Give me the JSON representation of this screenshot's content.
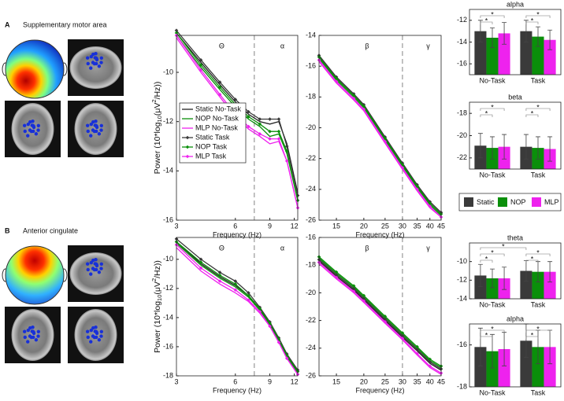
{
  "panels": [
    {
      "label": "A",
      "title": "Supplementary motor area"
    },
    {
      "label": "B",
      "title": "Anterior cingulate"
    }
  ],
  "chart_data": [
    {
      "type": "line",
      "x_label": "Frequency (Hz)",
      "y_label": {
        "prefix": "Power (10*log",
        "sub": "10",
        "mid": "(μV",
        "sup": "2",
        "suffix": "/Hz))"
      },
      "x": [
        3,
        4,
        5,
        6,
        7,
        8,
        9,
        10,
        11,
        12.5
      ],
      "xlim": [
        3,
        12.5
      ],
      "xticks": [
        3,
        6,
        9,
        12
      ],
      "log_x": true,
      "ylim": [
        -16,
        -8.5
      ],
      "yticks": [
        -10,
        -12,
        -14,
        -16
      ],
      "band_edges": [
        7.5
      ],
      "band_labels": [
        "Θ",
        "α"
      ],
      "legend": true,
      "series": [
        {
          "name": "Static No-Task",
          "color": "#222222",
          "markers": false,
          "values": [
            -8.4,
            -9.6,
            -10.5,
            -11.2,
            -11.7,
            -12.0,
            -12.1,
            -12.0,
            -12.9,
            -14.9
          ]
        },
        {
          "name": "NOP No-Task",
          "color": "#0a8f0a",
          "markers": false,
          "values": [
            -8.5,
            -9.8,
            -10.7,
            -11.4,
            -11.9,
            -12.2,
            -12.6,
            -12.5,
            -13.3,
            -15.2
          ]
        },
        {
          "name": "MLP No-Task",
          "color": "#ee22ee",
          "markers": false,
          "values": [
            -8.6,
            -10.0,
            -11.0,
            -11.8,
            -12.3,
            -12.6,
            -12.9,
            -12.8,
            -13.6,
            -15.5
          ]
        },
        {
          "name": "Static Task",
          "color": "#3a3a3a",
          "markers": true,
          "values": [
            -8.3,
            -9.5,
            -10.4,
            -11.1,
            -11.6,
            -11.9,
            -11.9,
            -11.9,
            -13.0,
            -15.0
          ]
        },
        {
          "name": "NOP Task",
          "color": "#0a8f0a",
          "markers": true,
          "values": [
            -8.4,
            -9.7,
            -10.6,
            -11.3,
            -11.8,
            -12.1,
            -12.4,
            -12.4,
            -13.2,
            -15.2
          ]
        },
        {
          "name": "MLP Task",
          "color": "#ee22ee",
          "markers": true,
          "values": [
            -8.5,
            -9.9,
            -10.9,
            -11.7,
            -12.2,
            -12.5,
            -12.7,
            -12.7,
            -13.6,
            -15.5
          ]
        }
      ]
    },
    {
      "type": "line",
      "x_label": "Frequency (Hz)",
      "x": [
        12.5,
        15,
        18,
        20,
        25,
        30,
        35,
        40,
        45
      ],
      "xlim": [
        12.5,
        45
      ],
      "xticks": [
        15,
        20,
        25,
        30,
        35,
        40,
        45
      ],
      "log_x": true,
      "ylim": [
        -26,
        -14
      ],
      "yticks": [
        -14,
        -16,
        -18,
        -20,
        -22,
        -24,
        -26
      ],
      "band_edges": [
        30
      ],
      "band_labels": [
        "β",
        "γ"
      ],
      "legend": false,
      "series": [
        {
          "name": "Static No-Task",
          "color": "#222222",
          "markers": false,
          "values": [
            -15.4,
            -16.8,
            -17.9,
            -18.6,
            -20.7,
            -22.4,
            -23.8,
            -24.9,
            -25.6
          ]
        },
        {
          "name": "NOP No-Task",
          "color": "#0a8f0a",
          "markers": false,
          "values": [
            -15.5,
            -16.9,
            -18.0,
            -18.7,
            -20.8,
            -22.5,
            -23.9,
            -25.0,
            -25.7
          ]
        },
        {
          "name": "MLP No-Task",
          "color": "#ee22ee",
          "markers": false,
          "values": [
            -15.7,
            -17.1,
            -18.2,
            -18.9,
            -21.0,
            -22.7,
            -24.1,
            -25.2,
            -25.8
          ]
        },
        {
          "name": "Static Task",
          "color": "#3a3a3a",
          "markers": true,
          "values": [
            -15.3,
            -16.7,
            -17.8,
            -18.5,
            -20.6,
            -22.3,
            -23.7,
            -24.8,
            -25.5
          ]
        },
        {
          "name": "NOP Task",
          "color": "#0a8f0a",
          "markers": true,
          "values": [
            -15.4,
            -16.8,
            -17.9,
            -18.6,
            -20.7,
            -22.4,
            -23.8,
            -24.9,
            -25.6
          ]
        },
        {
          "name": "MLP Task",
          "color": "#ee22ee",
          "markers": true,
          "values": [
            -15.6,
            -17.0,
            -18.1,
            -18.8,
            -20.9,
            -22.6,
            -24.0,
            -25.1,
            -25.8
          ]
        }
      ]
    },
    {
      "type": "grouped_bar",
      "title": "alpha",
      "categories": [
        "No-Task",
        "Task"
      ],
      "ylim": [
        -17,
        -11
      ],
      "yticks": [
        -12,
        -14,
        -16
      ],
      "legend": false,
      "series": [
        {
          "name": "Static",
          "color": "#3a3a3a",
          "values": [
            -13.0,
            -13.0
          ],
          "errors": [
            1.0,
            1.0
          ]
        },
        {
          "name": "NOP",
          "color": "#0a8f0a",
          "values": [
            -13.6,
            -13.5
          ],
          "errors": [
            0.9,
            0.9
          ]
        },
        {
          "name": "MLP",
          "color": "#ee22ee",
          "values": [
            -13.2,
            -13.8
          ],
          "errors": [
            1.0,
            0.9
          ]
        }
      ],
      "significance": [
        {
          "a": [
            "No-Task",
            "Static"
          ],
          "b": [
            "No-Task",
            "NOP"
          ],
          "label": "*"
        },
        {
          "a": [
            "No-Task",
            "Static"
          ],
          "b": [
            "No-Task",
            "MLP"
          ],
          "label": "*"
        },
        {
          "a": [
            "Task",
            "Static"
          ],
          "b": [
            "Task",
            "NOP"
          ],
          "label": "*"
        },
        {
          "a": [
            "Task",
            "Static"
          ],
          "b": [
            "Task",
            "MLP"
          ],
          "label": "*"
        }
      ]
    },
    {
      "type": "grouped_bar",
      "title": "beta",
      "categories": [
        "No-Task",
        "Task"
      ],
      "ylim": [
        -23,
        -17
      ],
      "yticks": [
        -18,
        -20,
        -22
      ],
      "legend": true,
      "series": [
        {
          "name": "Static",
          "color": "#3a3a3a",
          "values": [
            -20.9,
            -21.0
          ],
          "errors": [
            1.1,
            1.1
          ]
        },
        {
          "name": "NOP",
          "color": "#0a8f0a",
          "values": [
            -21.1,
            -21.1
          ],
          "errors": [
            1.0,
            1.0
          ]
        },
        {
          "name": "MLP",
          "color": "#ee22ee",
          "values": [
            -21.0,
            -21.2
          ],
          "errors": [
            1.1,
            1.1
          ]
        }
      ],
      "significance": [
        {
          "a": [
            "No-Task",
            "Static"
          ],
          "b": [
            "No-Task",
            "NOP"
          ],
          "label": "*"
        },
        {
          "a": [
            "No-Task",
            "Static"
          ],
          "b": [
            "No-Task",
            "MLP"
          ],
          "label": "*"
        },
        {
          "a": [
            "Task",
            "Static"
          ],
          "b": [
            "Task",
            "NOP"
          ],
          "label": "*"
        },
        {
          "a": [
            "Task",
            "Static"
          ],
          "b": [
            "Task",
            "MLP"
          ],
          "label": "*"
        }
      ]
    },
    {
      "type": "line",
      "x_label": "Frequency (Hz)",
      "y_label": {
        "prefix": "Power (10*log",
        "sub": "10",
        "mid": "(μV",
        "sup": "2",
        "suffix": "/Hz))"
      },
      "x": [
        3,
        4,
        5,
        6,
        7,
        8,
        9,
        10,
        11,
        12.5
      ],
      "xlim": [
        3,
        12.5
      ],
      "xticks": [
        3,
        6,
        9,
        12
      ],
      "log_x": true,
      "ylim": [
        -18,
        -8.5
      ],
      "yticks": [
        -10,
        -12,
        -14,
        -16,
        -18
      ],
      "band_edges": [
        7.5
      ],
      "band_labels": [
        "Θ",
        "α"
      ],
      "legend": false,
      "series": [
        {
          "name": "Static No-Task",
          "color": "#222222",
          "markers": false,
          "values": [
            -8.8,
            -10.3,
            -11.2,
            -11.8,
            -12.5,
            -13.4,
            -14.4,
            -15.5,
            -16.6,
            -17.7
          ]
        },
        {
          "name": "NOP No-Task",
          "color": "#0a8f0a",
          "markers": false,
          "values": [
            -8.9,
            -10.4,
            -11.3,
            -11.9,
            -12.6,
            -13.5,
            -14.5,
            -15.6,
            -16.7,
            -17.8
          ]
        },
        {
          "name": "MLP No-Task",
          "color": "#ee22ee",
          "markers": false,
          "values": [
            -9.2,
            -10.8,
            -11.7,
            -12.3,
            -12.9,
            -13.7,
            -14.6,
            -15.7,
            -16.8,
            -17.9
          ]
        },
        {
          "name": "Static Task",
          "color": "#3a3a3a",
          "markers": true,
          "values": [
            -8.6,
            -10.0,
            -10.9,
            -11.5,
            -12.3,
            -13.3,
            -14.3,
            -15.4,
            -16.5,
            -17.6
          ]
        },
        {
          "name": "NOP Task",
          "color": "#0a8f0a",
          "markers": true,
          "values": [
            -8.8,
            -10.2,
            -11.1,
            -11.7,
            -12.5,
            -13.4,
            -14.4,
            -15.5,
            -16.6,
            -17.7
          ]
        },
        {
          "name": "MLP Task",
          "color": "#ee22ee",
          "markers": true,
          "values": [
            -9.0,
            -10.6,
            -11.5,
            -12.1,
            -12.8,
            -13.6,
            -14.6,
            -15.7,
            -16.8,
            -17.9
          ]
        }
      ]
    },
    {
      "type": "line",
      "x_label": "Frequency (Hz)",
      "x": [
        12.5,
        15,
        18,
        20,
        25,
        30,
        35,
        40,
        45
      ],
      "xlim": [
        12.5,
        45
      ],
      "xticks": [
        15,
        20,
        25,
        30,
        35,
        40,
        45
      ],
      "log_x": true,
      "ylim": [
        -26,
        -16
      ],
      "yticks": [
        -16,
        -18,
        -20,
        -22,
        -24,
        -26
      ],
      "band_edges": [
        30
      ],
      "band_labels": [
        "β",
        "γ"
      ],
      "legend": false,
      "series": [
        {
          "name": "Static No-Task",
          "color": "#222222",
          "markers": false,
          "values": [
            -17.7,
            -18.8,
            -19.8,
            -20.5,
            -22.0,
            -23.2,
            -24.2,
            -25.1,
            -25.6
          ]
        },
        {
          "name": "NOP No-Task",
          "color": "#0a8f0a",
          "markers": false,
          "values": [
            -17.5,
            -18.6,
            -19.6,
            -20.3,
            -21.8,
            -23.0,
            -24.0,
            -24.9,
            -25.4
          ]
        },
        {
          "name": "MLP No-Task",
          "color": "#ee22ee",
          "markers": false,
          "values": [
            -17.9,
            -19.0,
            -20.0,
            -20.7,
            -22.2,
            -23.4,
            -24.5,
            -25.4,
            -25.9
          ]
        },
        {
          "name": "Static Task",
          "color": "#3a3a3a",
          "markers": true,
          "values": [
            -17.6,
            -18.7,
            -19.7,
            -20.4,
            -21.9,
            -23.1,
            -24.1,
            -25.0,
            -25.5
          ]
        },
        {
          "name": "NOP Task",
          "color": "#0a8f0a",
          "markers": true,
          "values": [
            -17.4,
            -18.5,
            -19.5,
            -20.2,
            -21.7,
            -22.9,
            -23.9,
            -24.8,
            -25.3
          ]
        },
        {
          "name": "MLP Task",
          "color": "#ee22ee",
          "markers": true,
          "values": [
            -17.8,
            -18.9,
            -19.9,
            -20.6,
            -22.1,
            -23.3,
            -24.4,
            -25.3,
            -25.8
          ]
        }
      ]
    },
    {
      "type": "grouped_bar",
      "title": "theta",
      "categories": [
        "No-Task",
        "Task"
      ],
      "ylim": [
        -14,
        -8
      ],
      "yticks": [
        -10,
        -12,
        -14
      ],
      "legend": false,
      "series": [
        {
          "name": "Static",
          "color": "#3a3a3a",
          "values": [
            -11.5,
            -11.0
          ],
          "errors": [
            1.2,
            1.1
          ]
        },
        {
          "name": "NOP",
          "color": "#0a8f0a",
          "values": [
            -11.8,
            -11.1
          ],
          "errors": [
            1.0,
            1.1
          ]
        },
        {
          "name": "MLP",
          "color": "#ee22ee",
          "values": [
            -11.8,
            -11.1
          ],
          "errors": [
            1.2,
            1.1
          ]
        }
      ],
      "significance": [
        {
          "a": [
            "No-Task",
            "Static"
          ],
          "b": [
            "No-Task",
            "NOP"
          ],
          "label": "*"
        },
        {
          "a": [
            "No-Task",
            "Static"
          ],
          "b": [
            "No-Task",
            "MLP"
          ],
          "label": "*"
        },
        {
          "a": [
            "Task",
            "Static"
          ],
          "b": [
            "Task",
            "NOP"
          ],
          "label": "*"
        },
        {
          "a": [
            "Task",
            "Static"
          ],
          "b": [
            "Task",
            "MLP"
          ],
          "label": "*"
        },
        {
          "a": [
            "No-Task",
            "Static"
          ],
          "b": [
            "Task",
            "Static"
          ],
          "label": "*"
        }
      ]
    },
    {
      "type": "grouped_bar",
      "title": "alpha",
      "categories": [
        "No-Task",
        "Task"
      ],
      "ylim": [
        -18,
        -15
      ],
      "yticks": [
        -16,
        -18
      ],
      "legend": false,
      "series": [
        {
          "name": "Static",
          "color": "#3a3a3a",
          "values": [
            -16.1,
            -15.8
          ],
          "errors": [
            0.9,
            0.8
          ]
        },
        {
          "name": "NOP",
          "color": "#0a8f0a",
          "values": [
            -16.3,
            -16.1
          ],
          "errors": [
            0.8,
            0.8
          ]
        },
        {
          "name": "MLP",
          "color": "#ee22ee",
          "values": [
            -16.2,
            -16.1
          ],
          "errors": [
            0.8,
            0.8
          ]
        }
      ],
      "significance": [
        {
          "a": [
            "No-Task",
            "Static"
          ],
          "b": [
            "No-Task",
            "NOP"
          ],
          "label": "*"
        },
        {
          "a": [
            "No-Task",
            "Static"
          ],
          "b": [
            "No-Task",
            "MLP"
          ],
          "label": "*"
        },
        {
          "a": [
            "Task",
            "Static"
          ],
          "b": [
            "Task",
            "NOP"
          ],
          "label": "*"
        },
        {
          "a": [
            "Task",
            "Static"
          ],
          "b": [
            "Task",
            "MLP"
          ],
          "label": "*"
        }
      ]
    }
  ]
}
